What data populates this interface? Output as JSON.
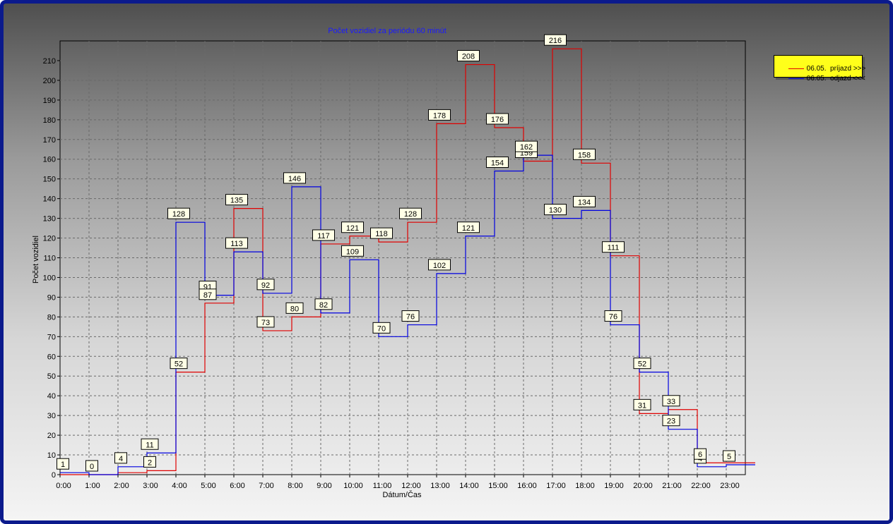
{
  "chart_data": {
    "type": "line",
    "title": "Počet vozidiel za periódu 60 minút",
    "xlabel": "Dátum/Čas",
    "ylabel": "Počet vozidiel",
    "ylim": [
      0,
      220
    ],
    "yticks": [
      0,
      10,
      20,
      30,
      40,
      50,
      60,
      70,
      80,
      90,
      100,
      110,
      120,
      130,
      140,
      150,
      160,
      170,
      180,
      190,
      200,
      210
    ],
    "categories": [
      "0:00",
      "1:00",
      "2:00",
      "3:00",
      "4:00",
      "5:00",
      "6:00",
      "7:00",
      "8:00",
      "9:00",
      "10:00",
      "11:00",
      "12:00",
      "13:00",
      "14:00",
      "15:00",
      "16:00",
      "17:00",
      "18:00",
      "19:00",
      "20:00",
      "21:00",
      "22:00",
      "23:00"
    ],
    "grid": true,
    "legend_position": "top-right",
    "series": [
      {
        "name": "06.05.  príjazd >>>",
        "color": "#e00000",
        "values": [
          0,
          0,
          1,
          2,
          52,
          87,
          135,
          73,
          80,
          117,
          121,
          118,
          128,
          178,
          208,
          176,
          159,
          216,
          158,
          111,
          31,
          33,
          6,
          6
        ]
      },
      {
        "name": "06.05.  odjazd <<<",
        "color": "#0000e0",
        "values": [
          1,
          0,
          4,
          11,
          128,
          91,
          113,
          92,
          146,
          82,
          109,
          70,
          76,
          102,
          121,
          154,
          162,
          130,
          134,
          76,
          52,
          23,
          4,
          5
        ]
      }
    ],
    "annotations": [
      {
        "text": "1",
        "x": "0:00",
        "y": 1
      },
      {
        "text": "0",
        "x": "1:00",
        "y": 0
      },
      {
        "text": "4",
        "x": "2:00",
        "y": 4
      },
      {
        "text": "11",
        "x": "3:00",
        "y": 11
      },
      {
        "text": "2",
        "x": "3:00",
        "y": 2
      },
      {
        "text": "128",
        "x": "4:00",
        "y": 128
      },
      {
        "text": "52",
        "x": "4:00",
        "y": 52
      },
      {
        "text": "91",
        "x": "5:00",
        "y": 91
      },
      {
        "text": "87",
        "x": "5:00",
        "y": 87
      },
      {
        "text": "135",
        "x": "6:00",
        "y": 135
      },
      {
        "text": "113",
        "x": "6:00",
        "y": 113
      },
      {
        "text": "92",
        "x": "7:00",
        "y": 92
      },
      {
        "text": "73",
        "x": "7:00",
        "y": 73
      },
      {
        "text": "146",
        "x": "8:00",
        "y": 146
      },
      {
        "text": "80",
        "x": "8:00",
        "y": 80
      },
      {
        "text": "117",
        "x": "9:00",
        "y": 117
      },
      {
        "text": "82",
        "x": "9:00",
        "y": 82
      },
      {
        "text": "121",
        "x": "10:00",
        "y": 121
      },
      {
        "text": "109",
        "x": "10:00",
        "y": 109
      },
      {
        "text": "118",
        "x": "11:00",
        "y": 118
      },
      {
        "text": "70",
        "x": "11:00",
        "y": 70
      },
      {
        "text": "128",
        "x": "12:00",
        "y": 128
      },
      {
        "text": "76",
        "x": "12:00",
        "y": 76
      },
      {
        "text": "178",
        "x": "13:00",
        "y": 178
      },
      {
        "text": "102",
        "x": "13:00",
        "y": 102
      },
      {
        "text": "208",
        "x": "14:00",
        "y": 208
      },
      {
        "text": "121",
        "x": "14:00",
        "y": 121
      },
      {
        "text": "176",
        "x": "15:00",
        "y": 176
      },
      {
        "text": "154",
        "x": "15:00",
        "y": 154
      },
      {
        "text": "159",
        "x": "16:00",
        "y": 159
      },
      {
        "text": "162",
        "x": "16:00",
        "y": 162
      },
      {
        "text": "216",
        "x": "17:00",
        "y": 216
      },
      {
        "text": "130",
        "x": "17:00",
        "y": 130
      },
      {
        "text": "158",
        "x": "18:00",
        "y": 158
      },
      {
        "text": "134",
        "x": "18:00",
        "y": 134
      },
      {
        "text": "111",
        "x": "19:00",
        "y": 111
      },
      {
        "text": "76",
        "x": "19:00",
        "y": 76
      },
      {
        "text": "52",
        "x": "20:00",
        "y": 52
      },
      {
        "text": "31",
        "x": "20:00",
        "y": 31
      },
      {
        "text": "33",
        "x": "21:00",
        "y": 33
      },
      {
        "text": "23",
        "x": "21:00",
        "y": 23
      },
      {
        "text": "4",
        "x": "22:00",
        "y": 4
      },
      {
        "text": "6",
        "x": "22:00",
        "y": 6
      },
      {
        "text": "5",
        "x": "23:00",
        "y": 5
      }
    ]
  }
}
